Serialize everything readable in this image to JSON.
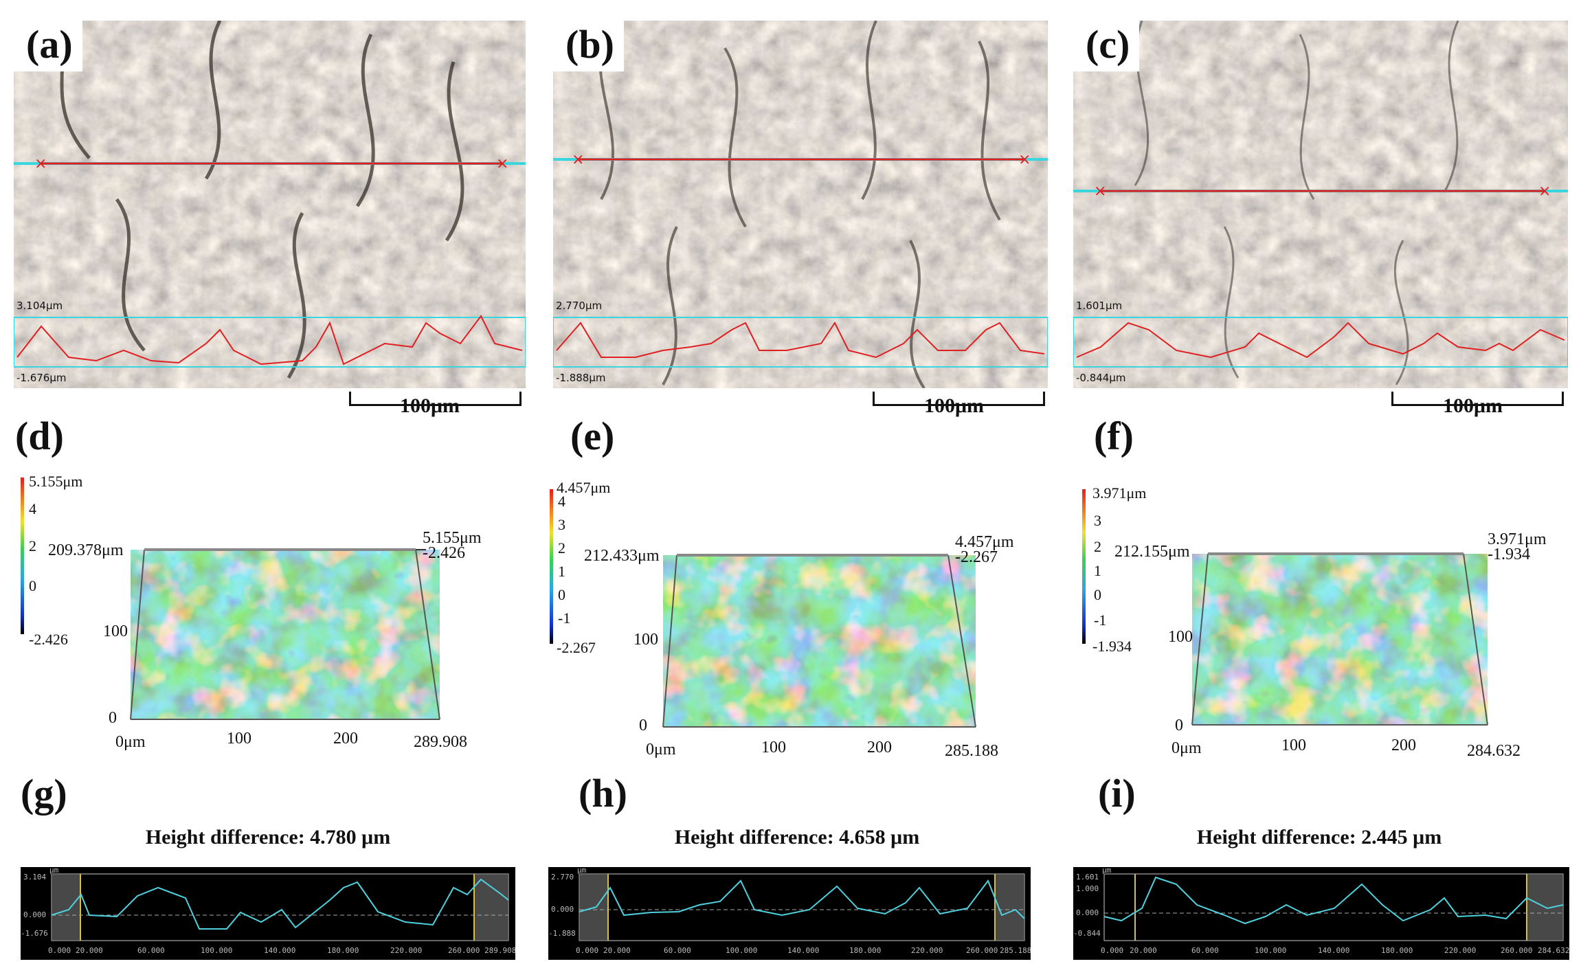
{
  "panels": {
    "a": {
      "label": "(a)",
      "top_label": "3.104μm",
      "bottom_label": "-1.676μm",
      "scale": "100μm"
    },
    "b": {
      "label": "(b)",
      "top_label": "2.770μm",
      "bottom_label": "-1.888μm",
      "scale": "100μm"
    },
    "c": {
      "label": "(c)",
      "top_label": "1.601μm",
      "bottom_label": "-0.844μm",
      "scale": "100μm"
    },
    "d": {
      "label": "(d)",
      "cb_max": "5.155μm",
      "cb_ticks": [
        "4",
        "2",
        "0"
      ],
      "cb_min": "-2.426",
      "y_top": "209.378μm",
      "right_top": "5.155μm",
      "right_bot": "-2.426",
      "y_ticks": [
        "100",
        "0"
      ],
      "x_ticks": [
        "0μm",
        "100",
        "200",
        "289.908"
      ]
    },
    "e": {
      "label": "(e)",
      "cb_max": "4.457μm",
      "cb_ticks": [
        "4",
        "3",
        "2",
        "1",
        "0",
        "-1"
      ],
      "cb_min": "-2.267",
      "y_top": "212.433μm",
      "right_top": "4.457μm",
      "right_bot": "-2.267",
      "y_ticks": [
        "100",
        "0"
      ],
      "x_ticks": [
        "0μm",
        "100",
        "200",
        "285.188"
      ]
    },
    "f": {
      "label": "(f)",
      "cb_max": "3.971μm",
      "cb_ticks": [
        "3",
        "2",
        "1",
        "0",
        "-1"
      ],
      "cb_min": "-1.934",
      "y_top": "212.155μm",
      "right_top": "3.971μm",
      "right_bot": "-1.934",
      "y_ticks": [
        "100",
        "0"
      ],
      "x_ticks": [
        "0μm",
        "100",
        "200",
        "284.632"
      ]
    },
    "g": {
      "label": "(g)",
      "title": "Height difference: 4.780 μm",
      "unit": "μm",
      "y_ticks": [
        "3.104",
        "0.000",
        "-1.676"
      ],
      "x_ticks": [
        "0.000",
        "20.000",
        "60.000",
        "100.000",
        "140.000",
        "180.000",
        "220.000",
        "260.000",
        "289.908"
      ]
    },
    "h": {
      "label": "(h)",
      "title": "Height difference: 4.658 μm",
      "unit": "μm",
      "y_ticks": [
        "2.770",
        "0.000",
        "-1.888"
      ],
      "x_ticks": [
        "0.000",
        "20.000",
        "60.000",
        "100.000",
        "140.000",
        "180.000",
        "220.000",
        "260.000",
        "285.188"
      ]
    },
    "i": {
      "label": "(i)",
      "title": "Height difference: 2.445 μm",
      "unit": "μm",
      "y_ticks": [
        "1.601",
        "1.000",
        "0.000",
        "-0.844"
      ],
      "x_ticks": [
        "0.000",
        "20.000",
        "60.000",
        "100.000",
        "140.000",
        "180.000",
        "220.000",
        "260.000",
        "284.632"
      ]
    }
  },
  "colors": {
    "profile_red": "#e02020",
    "cyan": "#3ad6e0",
    "trace": "#4fd2e0"
  }
}
